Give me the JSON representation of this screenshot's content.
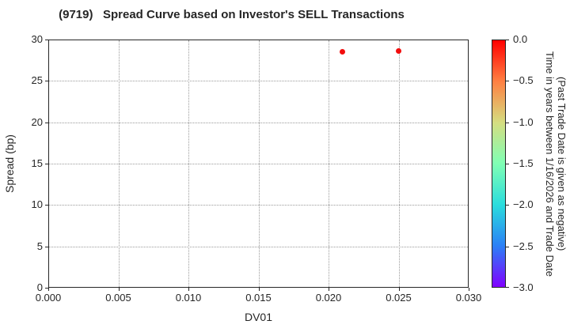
{
  "title": "(9719)   Spread Curve based on Investor's SELL Transactions",
  "chart_data": {
    "type": "scatter",
    "title": "(9719)   Spread Curve based on Investor's SELL Transactions",
    "xlabel": "DV01",
    "ylabel": "Spread (bp)",
    "xlim": [
      0.0,
      0.03
    ],
    "ylim": [
      0,
      30
    ],
    "x_ticks": [
      0.0,
      0.005,
      0.01,
      0.015,
      0.02,
      0.025,
      0.03
    ],
    "x_tick_labels": [
      "0.000",
      "0.005",
      "0.010",
      "0.015",
      "0.020",
      "0.025",
      "0.030"
    ],
    "y_ticks": [
      0,
      5,
      10,
      15,
      20,
      25,
      30
    ],
    "y_tick_labels": [
      "0",
      "5",
      "10",
      "15",
      "20",
      "25",
      "30"
    ],
    "grid": true,
    "grid_style": "dotted",
    "legend": "none",
    "points": [
      {
        "x": 0.021,
        "y": 28.5,
        "time_value": 0.0,
        "color": "#f20d0d"
      },
      {
        "x": 0.025,
        "y": 28.6,
        "time_value": 0.0,
        "color": "#f20d0d"
      }
    ],
    "colorbar": {
      "label_line1": "Time in years between 1/16/2026 and Trade Date",
      "label_line2": "(Past Trade Date is given as negative)",
      "tick_labels": [
        "0.0",
        "−0.5",
        "−1.0",
        "−1.5",
        "−2.0",
        "−2.5",
        "−3.0"
      ],
      "range_top": 0.0,
      "range_bottom": -3.0,
      "colormap": "rainbow (red=0.0 top, violet=−3.0 bottom)",
      "gradient_stops": [
        "#ff0000",
        "#ff8042",
        "#d5dd80",
        "#80ffb4",
        "#2bdddd",
        "#2b80f6",
        "#8000ff"
      ]
    }
  },
  "colors": {
    "background": "#ffffff",
    "spine": "#262626",
    "grid": "#9a9a9a",
    "text": "#262626",
    "marker": "#f20d0d"
  }
}
